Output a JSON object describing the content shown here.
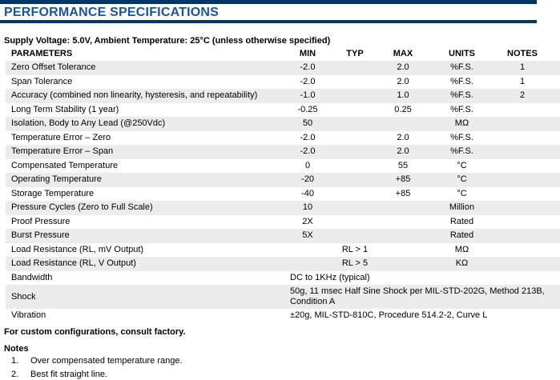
{
  "page": {
    "title": "PERFORMANCE SPECIFICATIONS",
    "condition_line": "Supply Voltage: 5.0V, Ambient Temperature: 25°C (unless otherwise specified)",
    "colors": {
      "accent_navy": "#003767",
      "title_blue": "#1a5496",
      "stripe_gray": "#ececec"
    }
  },
  "table": {
    "headers": {
      "parameters": "PARAMETERS",
      "min": "MIN",
      "typ": "TYP",
      "max": "MAX",
      "units": "UNITS",
      "notes": "NOTES"
    },
    "rows": [
      {
        "parameter": "Zero Offset Tolerance",
        "min": "-2.0",
        "typ": "",
        "max": "2.0",
        "units": "%F.S.",
        "notes": "1"
      },
      {
        "parameter": "Span Tolerance",
        "min": "-2.0",
        "typ": "",
        "max": "2.0",
        "units": "%F.S.",
        "notes": "1"
      },
      {
        "parameter": "Accuracy (combined non linearity, hysteresis, and repeatability)",
        "min": "-1.0",
        "typ": "",
        "max": "1.0",
        "units": "%F.S.",
        "notes": "2"
      },
      {
        "parameter": "Long Term Stability (1 year)",
        "min": "-0.25",
        "typ": "",
        "max": "0.25",
        "units": "%F.S.",
        "notes": ""
      },
      {
        "parameter": "Isolation, Body to Any Lead (@250Vdc)",
        "min": "50",
        "typ": "",
        "max": "",
        "units": "MΩ",
        "notes": ""
      },
      {
        "parameter": "Temperature Error – Zero",
        "min": "-2.0",
        "typ": "",
        "max": "2.0",
        "units": "%F.S.",
        "notes": ""
      },
      {
        "parameter": "Temperature Error – Span",
        "min": "-2.0",
        "typ": "",
        "max": "2.0",
        "units": "%F.S.",
        "notes": ""
      },
      {
        "parameter": "Compensated Temperature",
        "min": "0",
        "typ": "",
        "max": "55",
        "units": "°C",
        "notes": ""
      },
      {
        "parameter": "Operating Temperature",
        "min": "-20",
        "typ": "",
        "max": "+85",
        "units": "°C",
        "notes": ""
      },
      {
        "parameter": "Storage Temperature",
        "min": "-40",
        "typ": "",
        "max": "+85",
        "units": "°C",
        "notes": ""
      },
      {
        "parameter": "Pressure Cycles (Zero to Full Scale)",
        "min": "10",
        "typ": "",
        "max": "",
        "units": "Million",
        "notes": ""
      },
      {
        "parameter": "Proof Pressure",
        "min": "2X",
        "typ": "",
        "max": "",
        "units": "Rated",
        "notes": ""
      },
      {
        "parameter": "Burst Pressure",
        "min": "5X",
        "typ": "",
        "max": "",
        "units": "Rated",
        "notes": ""
      },
      {
        "parameter": "Load Resistance (RL, mV Output)",
        "min": "",
        "typ": "RL > 1",
        "max": "",
        "units": "MΩ",
        "notes": ""
      },
      {
        "parameter": "Load Resistance (RL, V Output)",
        "min": "",
        "typ": "RL > 5",
        "max": "",
        "units": "KΩ",
        "notes": ""
      },
      {
        "parameter": "Bandwidth",
        "value": "DC to 1KHz (typical)"
      },
      {
        "parameter": "Shock",
        "value": "50g, 11 msec Half Sine Shock per MIL-STD-202G, Method 213B,\nCondition A"
      },
      {
        "parameter": "Vibration",
        "value": "±20g, MIL-STD-810C, Procedure 514.2-2, Curve L"
      }
    ]
  },
  "footer": {
    "custom_note": "For custom configurations, consult factory.",
    "notes_title": "Notes",
    "notes": [
      {
        "num": "1.",
        "text": "Over compensated temperature range."
      },
      {
        "num": "2.",
        "text": "Best fit straight line."
      }
    ]
  }
}
